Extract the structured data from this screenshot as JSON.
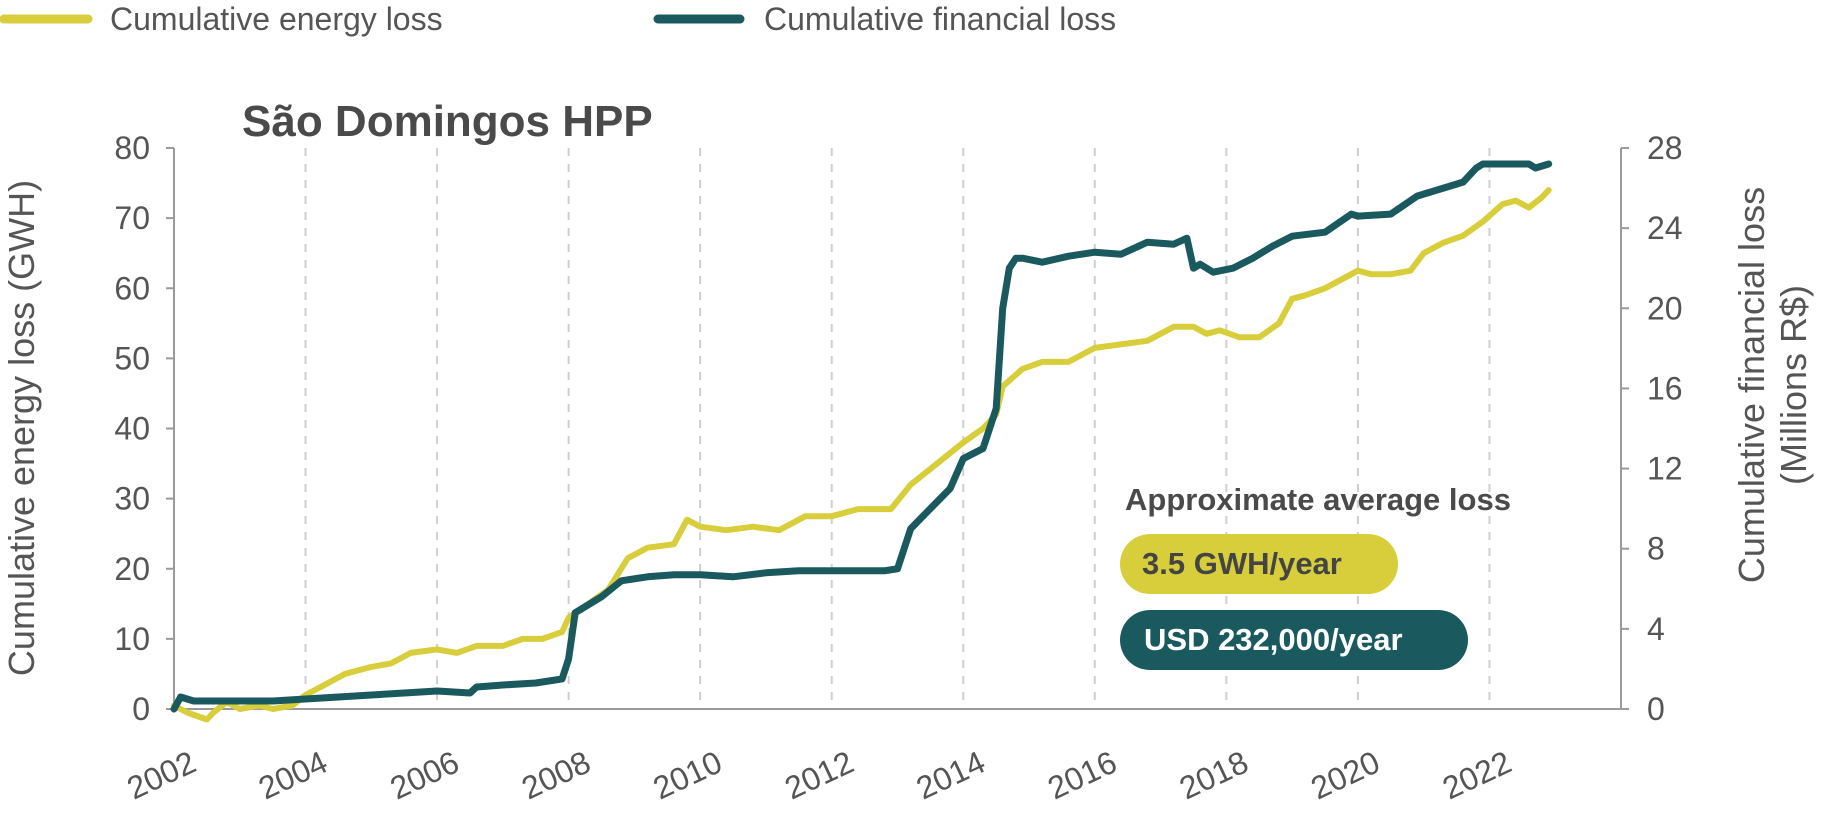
{
  "legend": {
    "energy_label": "Cumulative energy loss",
    "financial_label": "Cumulative financial loss"
  },
  "colors": {
    "energy": "#D8CE3C",
    "financial": "#1A5A5E",
    "text": "#555555"
  },
  "summary": {
    "title": "Approximate average loss",
    "energy_rate": "3.5 GWH/year",
    "financial_rate": "USD 232,000/year"
  },
  "chart_data": {
    "type": "line",
    "title": "São Domingos HPP",
    "ylabel_left": "Cumulative energy loss (GWH)",
    "ylabel_right_line1": "Cumulative financial loss",
    "ylabel_right_line2": "(Millions R$)",
    "xlim": [
      2002,
      2024
    ],
    "ylim_left": [
      0,
      80
    ],
    "ylim_right": [
      0,
      28
    ],
    "x_ticks": [
      "2002",
      "2004",
      "2006",
      "2008",
      "2010",
      "2012",
      "2014",
      "2016",
      "2018",
      "2020",
      "2022"
    ],
    "y_left_ticks": [
      "0",
      "10",
      "20",
      "30",
      "40",
      "50",
      "60",
      "70",
      "80"
    ],
    "y_right_ticks": [
      "0",
      "4",
      "8",
      "12",
      "16",
      "20",
      "24",
      "28"
    ],
    "grid_x": true,
    "legend_position": "top-left",
    "series": [
      {
        "name": "Cumulative energy loss",
        "axis": "left",
        "x": [
          2002.0,
          2002.2,
          2002.5,
          2002.6,
          2002.8,
          2003.0,
          2003.3,
          2003.5,
          2003.8,
          2004.0,
          2004.3,
          2004.6,
          2005.0,
          2005.3,
          2005.6,
          2006.0,
          2006.3,
          2006.6,
          2007.0,
          2007.3,
          2007.6,
          2007.9,
          2008.0,
          2008.3,
          2008.6,
          2008.9,
          2009.2,
          2009.6,
          2009.8,
          2010.0,
          2010.4,
          2010.8,
          2011.2,
          2011.6,
          2012.0,
          2012.4,
          2012.9,
          2013.2,
          2013.6,
          2014.0,
          2014.3,
          2014.5,
          2014.6,
          2014.9,
          2015.2,
          2015.6,
          2016.0,
          2016.4,
          2016.8,
          2017.2,
          2017.5,
          2017.7,
          2017.9,
          2018.2,
          2018.5,
          2018.8,
          2019.0,
          2019.2,
          2019.5,
          2019.8,
          2020.0,
          2020.2,
          2020.5,
          2020.8,
          2021.0,
          2021.3,
          2021.6,
          2021.9,
          2022.2,
          2022.4,
          2022.6,
          2022.8,
          2022.9
        ],
        "values": [
          0.5,
          -0.5,
          -1.5,
          -0.5,
          1.0,
          0.0,
          0.5,
          0.0,
          0.5,
          2.0,
          3.5,
          5.0,
          6.0,
          6.5,
          8.0,
          8.5,
          8.0,
          9.0,
          9.0,
          10.0,
          10.0,
          11.0,
          13.0,
          15.0,
          17.0,
          21.5,
          23.0,
          23.5,
          27.0,
          26.0,
          25.5,
          26.0,
          25.5,
          27.5,
          27.5,
          28.5,
          28.5,
          32.0,
          35.0,
          38.0,
          40.0,
          42.0,
          46.0,
          48.5,
          49.5,
          49.5,
          51.5,
          52.0,
          52.5,
          54.5,
          54.5,
          53.5,
          54.0,
          53.0,
          53.0,
          55.0,
          58.5,
          59.0,
          60.0,
          61.5,
          62.5,
          62.0,
          62.0,
          62.5,
          65.0,
          66.5,
          67.5,
          69.5,
          72.0,
          72.5,
          71.5,
          73.0,
          74.0
        ]
      },
      {
        "name": "Cumulative financial loss",
        "axis": "right",
        "x": [
          2002.0,
          2002.1,
          2002.3,
          2002.8,
          2003.5,
          2004.0,
          2004.5,
          2005.0,
          2005.5,
          2006.0,
          2006.5,
          2006.6,
          2007.0,
          2007.5,
          2007.9,
          2008.0,
          2008.1,
          2008.5,
          2008.8,
          2009.2,
          2009.6,
          2010.0,
          2010.5,
          2011.0,
          2011.5,
          2012.0,
          2012.5,
          2012.8,
          2013.0,
          2013.2,
          2013.5,
          2013.8,
          2014.0,
          2014.3,
          2014.5,
          2014.6,
          2014.7,
          2014.8,
          2014.9,
          2015.2,
          2015.6,
          2016.0,
          2016.4,
          2016.8,
          2017.2,
          2017.4,
          2017.5,
          2017.6,
          2017.8,
          2018.1,
          2018.4,
          2018.7,
          2019.0,
          2019.5,
          2019.9,
          2020.0,
          2020.5,
          2020.9,
          2021.2,
          2021.6,
          2021.8,
          2021.9,
          2022.3,
          2022.6,
          2022.7,
          2022.9
        ],
        "values": [
          0.0,
          0.6,
          0.4,
          0.4,
          0.4,
          0.5,
          0.6,
          0.7,
          0.8,
          0.9,
          0.8,
          1.1,
          1.2,
          1.3,
          1.5,
          2.5,
          4.8,
          5.6,
          6.4,
          6.6,
          6.7,
          6.7,
          6.6,
          6.8,
          6.9,
          6.9,
          6.9,
          6.9,
          7.0,
          9.0,
          10.0,
          11.0,
          12.5,
          13.0,
          15.0,
          20.0,
          22.0,
          22.5,
          22.5,
          22.3,
          22.6,
          22.8,
          22.7,
          23.3,
          23.2,
          23.5,
          22.0,
          22.2,
          21.8,
          22.0,
          22.5,
          23.1,
          23.6,
          23.8,
          24.7,
          24.6,
          24.7,
          25.6,
          25.9,
          26.3,
          27.0,
          27.2,
          27.2,
          27.2,
          27.0,
          27.2
        ]
      }
    ]
  }
}
